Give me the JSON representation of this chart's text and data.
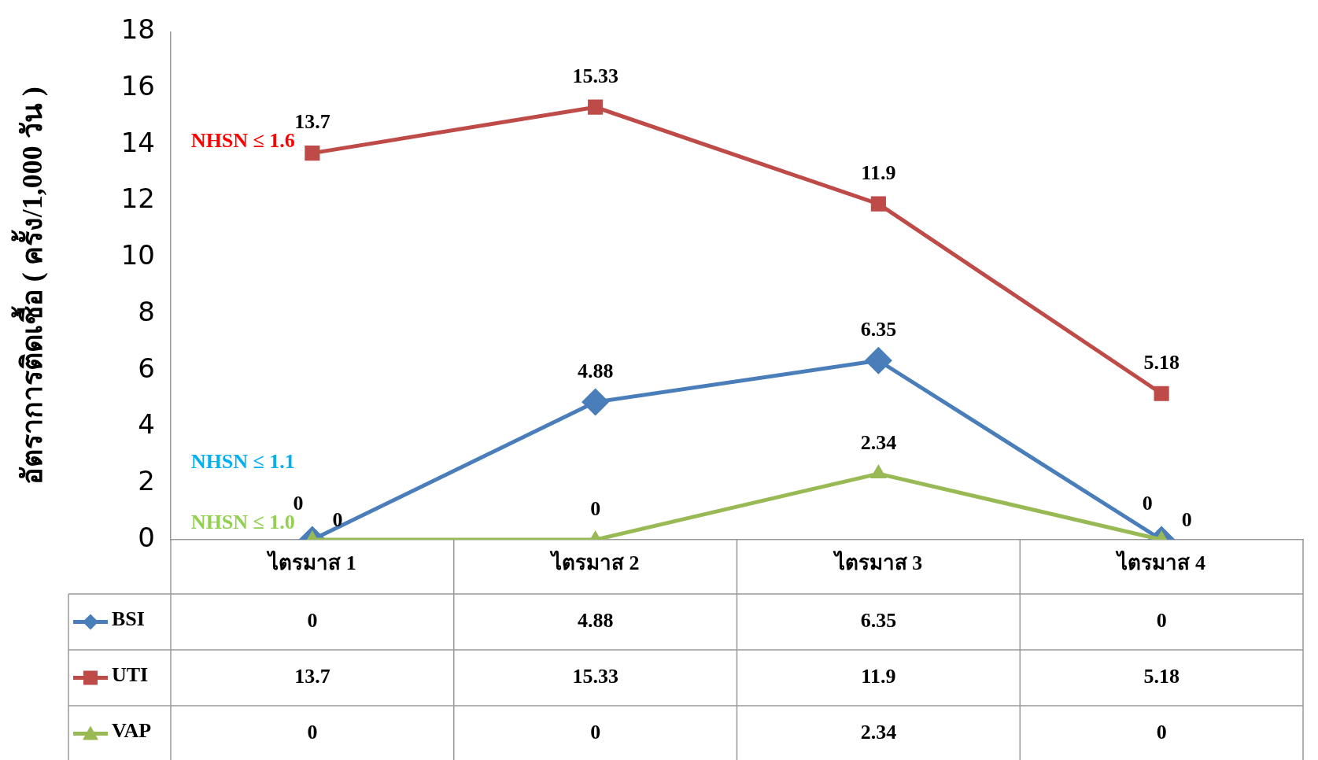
{
  "chart_data": {
    "type": "line",
    "ylabel": "อัตราการติดเชื้อ ( ครั้ง/1,000 วัน )",
    "categories": [
      "ไตรมาส 1",
      "ไตรมาส 2",
      "ไตรมาส 3",
      "ไตรมาส 4"
    ],
    "series": [
      {
        "name": "BSI",
        "color": "#4a7ebb",
        "marker": "diamond",
        "values": [
          0,
          4.88,
          6.35,
          0
        ]
      },
      {
        "name": "UTI",
        "color": "#be4b48",
        "marker": "square",
        "values": [
          13.7,
          15.33,
          11.9,
          5.18
        ]
      },
      {
        "name": "VAP",
        "color": "#98b954",
        "marker": "triangle",
        "values": [
          0,
          0,
          2.34,
          0
        ]
      }
    ],
    "ylim": [
      0,
      18
    ],
    "yticks": [
      0,
      2,
      4,
      6,
      8,
      10,
      12,
      14,
      16,
      18
    ],
    "grid": false,
    "legend": "bottom",
    "data_labels": true,
    "annotations": [
      "NHSN ≤ 1.6",
      "NHSN ≤ 1.1",
      "NHSN ≤ 1.0",
      {
        "text": "0",
        "x": "ไตรมาส 1",
        "y": 0
      },
      {
        "text": "4.88",
        "x": "ไตรมาส 2",
        "y": 4.88
      },
      {
        "text": "6.35",
        "x": "ไตรมาส 3",
        "y": 6.35
      },
      {
        "text": "0",
        "x": "ไตรมาส 4",
        "y": 0
      },
      {
        "text": "13.7",
        "x": "ไตรมาส 1",
        "y": 13.7
      },
      {
        "text": "15.33",
        "x": "ไตรมาส 2",
        "y": 15.33
      },
      {
        "text": "11.9",
        "x": "ไตรมาส 3",
        "y": 11.9
      },
      {
        "text": "5.18",
        "x": "ไตรมาส 4",
        "y": 5.18
      },
      {
        "text": "0",
        "x": "ไตรมาส 1",
        "y": 0
      },
      {
        "text": "0",
        "x": "ไตรมาส 2",
        "y": 0
      },
      {
        "text": "2.34",
        "x": "ไตรมาส 3",
        "y": 2.34
      },
      {
        "text": "0",
        "x": "ไตรมาส 4",
        "y": 0
      }
    ]
  }
}
